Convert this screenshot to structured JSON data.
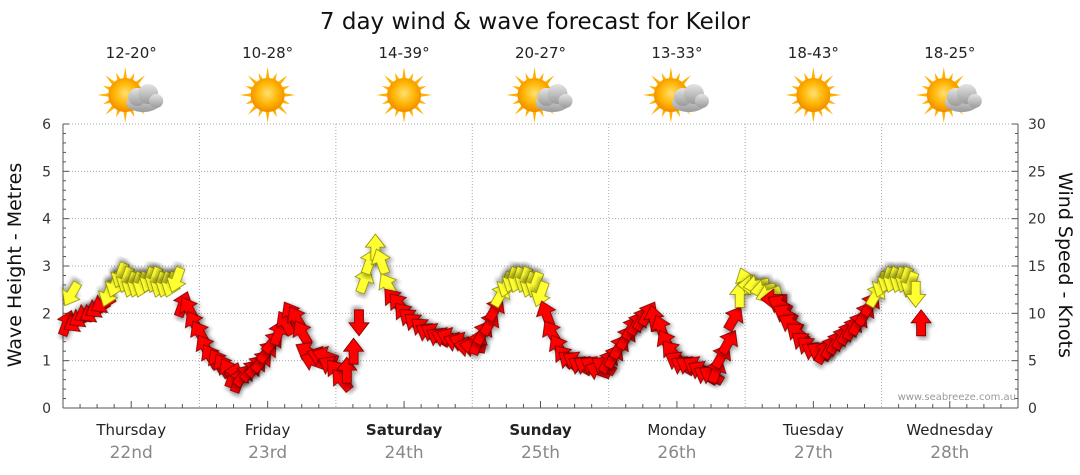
{
  "chart_data": {
    "type": "line",
    "title": "7 day wind & wave forecast for Keilor",
    "ylabel_left": "Wave Height - Metres",
    "ylabel_right": "Wind Speed - Knots",
    "ylim_left": [
      0,
      6
    ],
    "ylim_right": [
      0,
      30
    ],
    "yticks_left": [
      "0",
      "1",
      "2",
      "3",
      "4",
      "5",
      "6"
    ],
    "yticks_right": [
      "0",
      "5",
      "10",
      "15",
      "20",
      "25",
      "30"
    ],
    "watermark": "www.seabreeze.com.au",
    "colors": {
      "strong": "#ff0000",
      "light": "#ffff33",
      "sun": "#f5a000",
      "cloud": "#b8b8b8",
      "grid": "#aaaaaa"
    },
    "days": [
      {
        "name": "Thursday",
        "date": "22nd",
        "temp": "12-20°",
        "weather": "partly-cloudy-icon",
        "bold": false
      },
      {
        "name": "Friday",
        "date": "23rd",
        "temp": "10-28°",
        "weather": "sunny-icon",
        "bold": false
      },
      {
        "name": "Saturday",
        "date": "24th",
        "temp": "14-39°",
        "weather": "sunny-icon",
        "bold": true
      },
      {
        "name": "Sunday",
        "date": "25th",
        "temp": "20-27°",
        "weather": "partly-cloudy-icon",
        "bold": true
      },
      {
        "name": "Monday",
        "date": "26th",
        "temp": "13-33°",
        "weather": "partly-cloudy-icon",
        "bold": false
      },
      {
        "name": "Tuesday",
        "date": "27th",
        "temp": "18-43°",
        "weather": "sunny-icon",
        "bold": false
      },
      {
        "name": "Wednesday",
        "date": "28th",
        "temp": "18-25°",
        "weather": "partly-cloudy-icon",
        "bold": false
      }
    ],
    "wind_series": {
      "name": "Wind Speed",
      "unit": "knots",
      "x_unit": "days from start of Thursday",
      "points": [
        {
          "t": 0.03,
          "v": 9,
          "dir": 20
        },
        {
          "t": 0.06,
          "v": 12,
          "dir": 210
        },
        {
          "t": 0.09,
          "v": 9,
          "dir": 240
        },
        {
          "t": 0.13,
          "v": 9.5,
          "dir": 240
        },
        {
          "t": 0.17,
          "v": 10,
          "dir": 240
        },
        {
          "t": 0.21,
          "v": 10,
          "dir": 240
        },
        {
          "t": 0.25,
          "v": 10.5,
          "dir": 240
        },
        {
          "t": 0.29,
          "v": 11,
          "dir": 240
        },
        {
          "t": 0.33,
          "v": 12,
          "dir": 200
        },
        {
          "t": 0.38,
          "v": 13,
          "dir": 200
        },
        {
          "t": 0.42,
          "v": 14,
          "dir": 200
        },
        {
          "t": 0.46,
          "v": 13.5,
          "dir": 200
        },
        {
          "t": 0.5,
          "v": 13,
          "dir": 200
        },
        {
          "t": 0.54,
          "v": 13,
          "dir": 200
        },
        {
          "t": 0.58,
          "v": 13,
          "dir": 200
        },
        {
          "t": 0.63,
          "v": 13.5,
          "dir": 200
        },
        {
          "t": 0.67,
          "v": 13.5,
          "dir": 200
        },
        {
          "t": 0.71,
          "v": 13,
          "dir": 200
        },
        {
          "t": 0.75,
          "v": 13,
          "dir": 200
        },
        {
          "t": 0.79,
          "v": 13,
          "dir": 200
        },
        {
          "t": 0.83,
          "v": 13.5,
          "dir": 200
        },
        {
          "t": 0.88,
          "v": 11,
          "dir": 20
        },
        {
          "t": 0.92,
          "v": 10.5,
          "dir": 330
        },
        {
          "t": 0.96,
          "v": 9,
          "dir": 330
        },
        {
          "t": 1.0,
          "v": 8,
          "dir": 330
        },
        {
          "t": 1.04,
          "v": 6.5,
          "dir": 330
        },
        {
          "t": 1.08,
          "v": 5.5,
          "dir": 330
        },
        {
          "t": 1.13,
          "v": 5,
          "dir": 330
        },
        {
          "t": 1.17,
          "v": 4.5,
          "dir": 330
        },
        {
          "t": 1.21,
          "v": 4,
          "dir": 330
        },
        {
          "t": 1.25,
          "v": 3.5,
          "dir": 20
        },
        {
          "t": 1.29,
          "v": 3,
          "dir": 20
        },
        {
          "t": 1.33,
          "v": 3.5,
          "dir": 40
        },
        {
          "t": 1.38,
          "v": 4,
          "dir": 40
        },
        {
          "t": 1.42,
          "v": 4.5,
          "dir": 40
        },
        {
          "t": 1.46,
          "v": 5,
          "dir": 40
        },
        {
          "t": 1.5,
          "v": 6,
          "dir": 40
        },
        {
          "t": 1.54,
          "v": 7,
          "dir": 40
        },
        {
          "t": 1.58,
          "v": 8,
          "dir": 20
        },
        {
          "t": 1.63,
          "v": 9,
          "dir": 330
        },
        {
          "t": 1.67,
          "v": 10,
          "dir": 330
        },
        {
          "t": 1.71,
          "v": 9.5,
          "dir": 330
        },
        {
          "t": 1.75,
          "v": 8,
          "dir": 330
        },
        {
          "t": 1.79,
          "v": 6,
          "dir": 300
        },
        {
          "t": 1.83,
          "v": 5,
          "dir": 290
        },
        {
          "t": 1.88,
          "v": 5.5,
          "dir": 290
        },
        {
          "t": 1.92,
          "v": 5.5,
          "dir": 290
        },
        {
          "t": 1.96,
          "v": 4.5,
          "dir": 300
        },
        {
          "t": 2.0,
          "v": 4,
          "dir": 320
        },
        {
          "t": 2.04,
          "v": 3,
          "dir": 320
        },
        {
          "t": 2.08,
          "v": 4,
          "dir": 0
        },
        {
          "t": 2.13,
          "v": 6,
          "dir": 0
        },
        {
          "t": 2.17,
          "v": 9,
          "dir": 180
        },
        {
          "t": 2.21,
          "v": 13.5,
          "dir": 20
        },
        {
          "t": 2.25,
          "v": 15.5,
          "dir": 20
        },
        {
          "t": 2.29,
          "v": 17,
          "dir": 0
        },
        {
          "t": 2.33,
          "v": 15.5,
          "dir": 340
        },
        {
          "t": 2.38,
          "v": 13,
          "dir": 330
        },
        {
          "t": 2.42,
          "v": 11.5,
          "dir": 320
        },
        {
          "t": 2.46,
          "v": 11,
          "dir": 320
        },
        {
          "t": 2.5,
          "v": 10,
          "dir": 320
        },
        {
          "t": 2.54,
          "v": 9.5,
          "dir": 310
        },
        {
          "t": 2.58,
          "v": 9,
          "dir": 310
        },
        {
          "t": 2.63,
          "v": 8.5,
          "dir": 310
        },
        {
          "t": 2.67,
          "v": 8,
          "dir": 300
        },
        {
          "t": 2.71,
          "v": 8,
          "dir": 300
        },
        {
          "t": 2.75,
          "v": 7.5,
          "dir": 300
        },
        {
          "t": 2.79,
          "v": 7.5,
          "dir": 290
        },
        {
          "t": 2.83,
          "v": 7.5,
          "dir": 290
        },
        {
          "t": 2.88,
          "v": 7,
          "dir": 290
        },
        {
          "t": 2.92,
          "v": 7,
          "dir": 290
        },
        {
          "t": 2.96,
          "v": 6.5,
          "dir": 280
        },
        {
          "t": 3.0,
          "v": 6.5,
          "dir": 280
        },
        {
          "t": 3.04,
          "v": 7,
          "dir": 20
        },
        {
          "t": 3.08,
          "v": 8,
          "dir": 30
        },
        {
          "t": 3.13,
          "v": 9,
          "dir": 30
        },
        {
          "t": 3.17,
          "v": 10.5,
          "dir": 30
        },
        {
          "t": 3.21,
          "v": 12,
          "dir": 30
        },
        {
          "t": 3.25,
          "v": 13,
          "dir": 200
        },
        {
          "t": 3.29,
          "v": 13.5,
          "dir": 200
        },
        {
          "t": 3.33,
          "v": 13.5,
          "dir": 200
        },
        {
          "t": 3.38,
          "v": 13.5,
          "dir": 200
        },
        {
          "t": 3.42,
          "v": 13,
          "dir": 200
        },
        {
          "t": 3.46,
          "v": 13,
          "dir": 200
        },
        {
          "t": 3.5,
          "v": 12,
          "dir": 200
        },
        {
          "t": 3.54,
          "v": 10,
          "dir": 340
        },
        {
          "t": 3.58,
          "v": 8,
          "dir": 330
        },
        {
          "t": 3.63,
          "v": 6.5,
          "dir": 330
        },
        {
          "t": 3.67,
          "v": 5.5,
          "dir": 320
        },
        {
          "t": 3.71,
          "v": 5,
          "dir": 310
        },
        {
          "t": 3.75,
          "v": 5,
          "dir": 300
        },
        {
          "t": 3.79,
          "v": 4.5,
          "dir": 300
        },
        {
          "t": 3.83,
          "v": 4.5,
          "dir": 300
        },
        {
          "t": 3.88,
          "v": 4.5,
          "dir": 300
        },
        {
          "t": 3.92,
          "v": 4,
          "dir": 290
        },
        {
          "t": 3.96,
          "v": 4.5,
          "dir": 300
        },
        {
          "t": 4.0,
          "v": 5,
          "dir": 30
        },
        {
          "t": 4.04,
          "v": 5.5,
          "dir": 30
        },
        {
          "t": 4.08,
          "v": 6.5,
          "dir": 30
        },
        {
          "t": 4.13,
          "v": 7.5,
          "dir": 30
        },
        {
          "t": 4.17,
          "v": 8.5,
          "dir": 30
        },
        {
          "t": 4.21,
          "v": 9,
          "dir": 30
        },
        {
          "t": 4.25,
          "v": 9.5,
          "dir": 30
        },
        {
          "t": 4.29,
          "v": 10,
          "dir": 30
        },
        {
          "t": 4.33,
          "v": 9.5,
          "dir": 350
        },
        {
          "t": 4.38,
          "v": 8.5,
          "dir": 340
        },
        {
          "t": 4.42,
          "v": 7,
          "dir": 330
        },
        {
          "t": 4.46,
          "v": 6,
          "dir": 320
        },
        {
          "t": 4.5,
          "v": 5,
          "dir": 300
        },
        {
          "t": 4.54,
          "v": 4.5,
          "dir": 300
        },
        {
          "t": 4.58,
          "v": 4.5,
          "dir": 300
        },
        {
          "t": 4.63,
          "v": 4.5,
          "dir": 300
        },
        {
          "t": 4.67,
          "v": 4,
          "dir": 300
        },
        {
          "t": 4.71,
          "v": 3.5,
          "dir": 300
        },
        {
          "t": 4.75,
          "v": 3.5,
          "dir": 300
        },
        {
          "t": 4.79,
          "v": 4,
          "dir": 20
        },
        {
          "t": 4.83,
          "v": 5.5,
          "dir": 30
        },
        {
          "t": 4.88,
          "v": 7,
          "dir": 30
        },
        {
          "t": 4.92,
          "v": 9.5,
          "dir": 30
        },
        {
          "t": 4.96,
          "v": 12,
          "dir": 0
        },
        {
          "t": 5.0,
          "v": 13.5,
          "dir": 340
        },
        {
          "t": 5.04,
          "v": 13,
          "dir": 270
        },
        {
          "t": 5.08,
          "v": 13,
          "dir": 260
        },
        {
          "t": 5.13,
          "v": 12.5,
          "dir": 260
        },
        {
          "t": 5.17,
          "v": 12,
          "dir": 250
        },
        {
          "t": 5.21,
          "v": 11.5,
          "dir": 270
        },
        {
          "t": 5.25,
          "v": 11,
          "dir": 300
        },
        {
          "t": 5.29,
          "v": 10,
          "dir": 300
        },
        {
          "t": 5.33,
          "v": 9,
          "dir": 300
        },
        {
          "t": 5.38,
          "v": 8,
          "dir": 310
        },
        {
          "t": 5.42,
          "v": 7,
          "dir": 310
        },
        {
          "t": 5.46,
          "v": 6.5,
          "dir": 310
        },
        {
          "t": 5.5,
          "v": 6,
          "dir": 300
        },
        {
          "t": 5.54,
          "v": 6,
          "dir": 300
        },
        {
          "t": 5.58,
          "v": 6,
          "dir": 30
        },
        {
          "t": 5.63,
          "v": 6.5,
          "dir": 30
        },
        {
          "t": 5.67,
          "v": 7,
          "dir": 30
        },
        {
          "t": 5.71,
          "v": 7.5,
          "dir": 30
        },
        {
          "t": 5.75,
          "v": 8,
          "dir": 30
        },
        {
          "t": 5.79,
          "v": 8.5,
          "dir": 30
        },
        {
          "t": 5.83,
          "v": 9,
          "dir": 30
        },
        {
          "t": 5.88,
          "v": 10,
          "dir": 30
        },
        {
          "t": 5.92,
          "v": 11,
          "dir": 30
        },
        {
          "t": 5.96,
          "v": 12,
          "dir": 30
        },
        {
          "t": 6.0,
          "v": 13,
          "dir": 200
        },
        {
          "t": 6.04,
          "v": 13.5,
          "dir": 200
        },
        {
          "t": 6.08,
          "v": 13.5,
          "dir": 200
        },
        {
          "t": 6.13,
          "v": 13.5,
          "dir": 200
        },
        {
          "t": 6.17,
          "v": 13.5,
          "dir": 200
        },
        {
          "t": 6.21,
          "v": 13,
          "dir": 200
        },
        {
          "t": 6.25,
          "v": 12,
          "dir": 180
        },
        {
          "t": 6.29,
          "v": 9,
          "dir": 0
        }
      ]
    }
  }
}
